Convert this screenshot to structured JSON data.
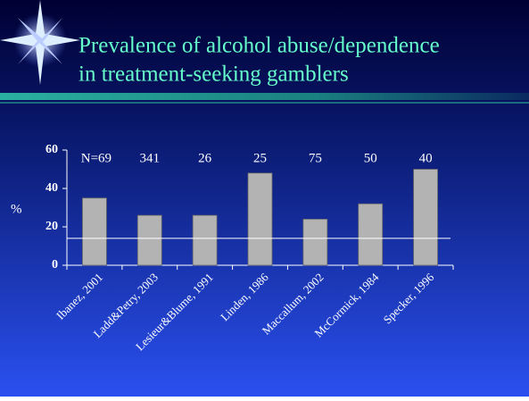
{
  "chart_data": {
    "type": "bar",
    "title": [
      "Prevalence of alcohol abuse/dependence",
      "in treatment-seeking gamblers"
    ],
    "y_label": "%",
    "categories": [
      "Ibanez, 2001",
      "Ladd&Petry, 2003",
      "Lesieur&Blume, 1991",
      "Linden, 1986",
      "Maccallum, 2002",
      "McCormick, 1984",
      "Specker, 1996"
    ],
    "values": [
      35,
      26,
      26,
      48,
      24,
      32,
      50
    ],
    "n_labels": [
      "N=69",
      "341",
      "26",
      "25",
      "75",
      "50",
      "40"
    ],
    "reference_line": 14,
    "color": "#b3b3b3",
    "ylim": [
      0,
      60
    ],
    "yticks": [
      0,
      20,
      40,
      60
    ]
  }
}
